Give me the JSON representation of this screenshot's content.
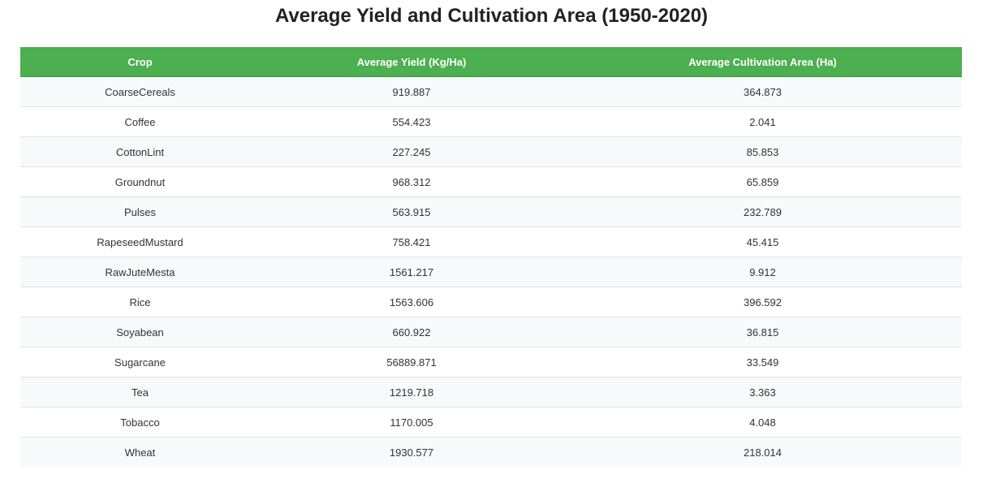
{
  "theme": {
    "header_bg": "#4caf50",
    "row_odd_bg": "#f8f9fa",
    "row_even_bg": "#ffffff"
  },
  "chart_data": {
    "type": "table",
    "title": "Average Yield and Cultivation Area (1950-2020)",
    "columns": [
      "Crop",
      "Average Yield (Kg/Ha)",
      "Average Cultivation Area (Ha)"
    ],
    "rows": [
      [
        "CoarseCereals",
        "919.887",
        "364.873"
      ],
      [
        "Coffee",
        "554.423",
        "2.041"
      ],
      [
        "CottonLint",
        "227.245",
        "85.853"
      ],
      [
        "Groundnut",
        "968.312",
        "65.859"
      ],
      [
        "Pulses",
        "563.915",
        "232.789"
      ],
      [
        "RapeseedMustard",
        "758.421",
        "45.415"
      ],
      [
        "RawJuteMesta",
        "1561.217",
        "9.912"
      ],
      [
        "Rice",
        "1563.606",
        "396.592"
      ],
      [
        "Soyabean",
        "660.922",
        "36.815"
      ],
      [
        "Sugarcane",
        "56889.871",
        "33.549"
      ],
      [
        "Tea",
        "1219.718",
        "3.363"
      ],
      [
        "Tobacco",
        "1170.005",
        "4.048"
      ],
      [
        "Wheat",
        "1930.577",
        "218.014"
      ]
    ]
  }
}
